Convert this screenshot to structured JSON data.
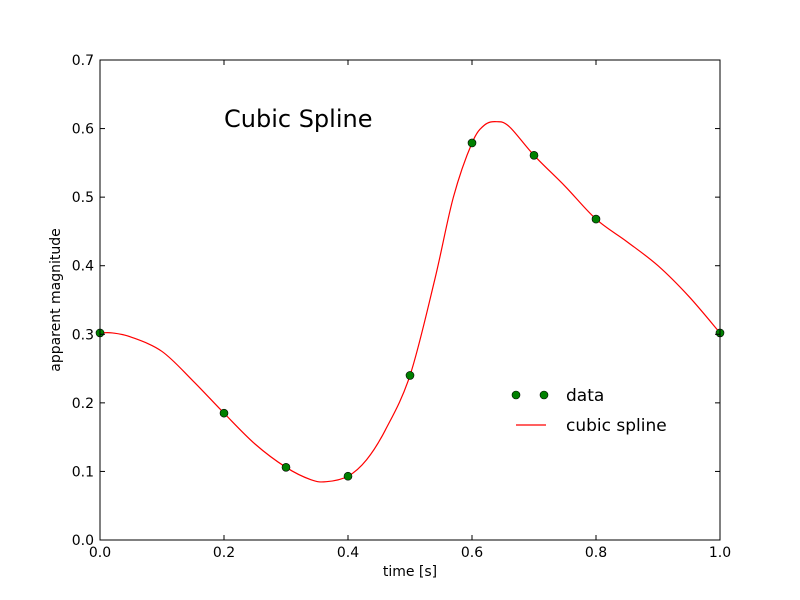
{
  "chart_data": {
    "type": "line",
    "title": "",
    "annotation": "Cubic Spline",
    "xlabel": "time [s]",
    "ylabel": "apparent magnitude",
    "xlim": [
      0.0,
      1.0
    ],
    "ylim": [
      0.0,
      0.7
    ],
    "grid": false,
    "legend_position": "center-right",
    "xticks": [
      0.0,
      0.2,
      0.4,
      0.6,
      0.8,
      1.0
    ],
    "xtick_labels": [
      "0.0",
      "0.2",
      "0.4",
      "0.6",
      "0.8",
      "1.0"
    ],
    "yticks": [
      0.0,
      0.1,
      0.2,
      0.3,
      0.4,
      0.5,
      0.6,
      0.7
    ],
    "ytick_labels": [
      "0.0",
      "0.1",
      "0.2",
      "0.3",
      "0.4",
      "0.5",
      "0.6",
      "0.7"
    ],
    "series": [
      {
        "name": "data",
        "style": "markers",
        "color": "#008000",
        "edge_color": "#000000",
        "x": [
          0.0,
          0.2,
          0.3,
          0.4,
          0.5,
          0.6,
          0.7,
          0.8,
          1.0
        ],
        "y": [
          0.302,
          0.185,
          0.106,
          0.093,
          0.24,
          0.579,
          0.561,
          0.468,
          0.302
        ]
      },
      {
        "name": "cubic spline",
        "style": "line",
        "color": "#ff0000",
        "x": [
          0.0,
          0.02,
          0.05,
          0.1,
          0.15,
          0.2,
          0.25,
          0.3,
          0.34,
          0.365,
          0.4,
          0.43,
          0.46,
          0.5,
          0.54,
          0.57,
          0.6,
          0.62,
          0.64,
          0.66,
          0.7,
          0.75,
          0.8,
          0.85,
          0.9,
          0.95,
          1.0
        ],
        "y": [
          0.302,
          0.302,
          0.296,
          0.275,
          0.232,
          0.185,
          0.14,
          0.106,
          0.088,
          0.085,
          0.093,
          0.117,
          0.16,
          0.24,
          0.38,
          0.5,
          0.579,
          0.605,
          0.61,
          0.603,
          0.561,
          0.516,
          0.468,
          0.435,
          0.4,
          0.355,
          0.302
        ]
      }
    ]
  }
}
